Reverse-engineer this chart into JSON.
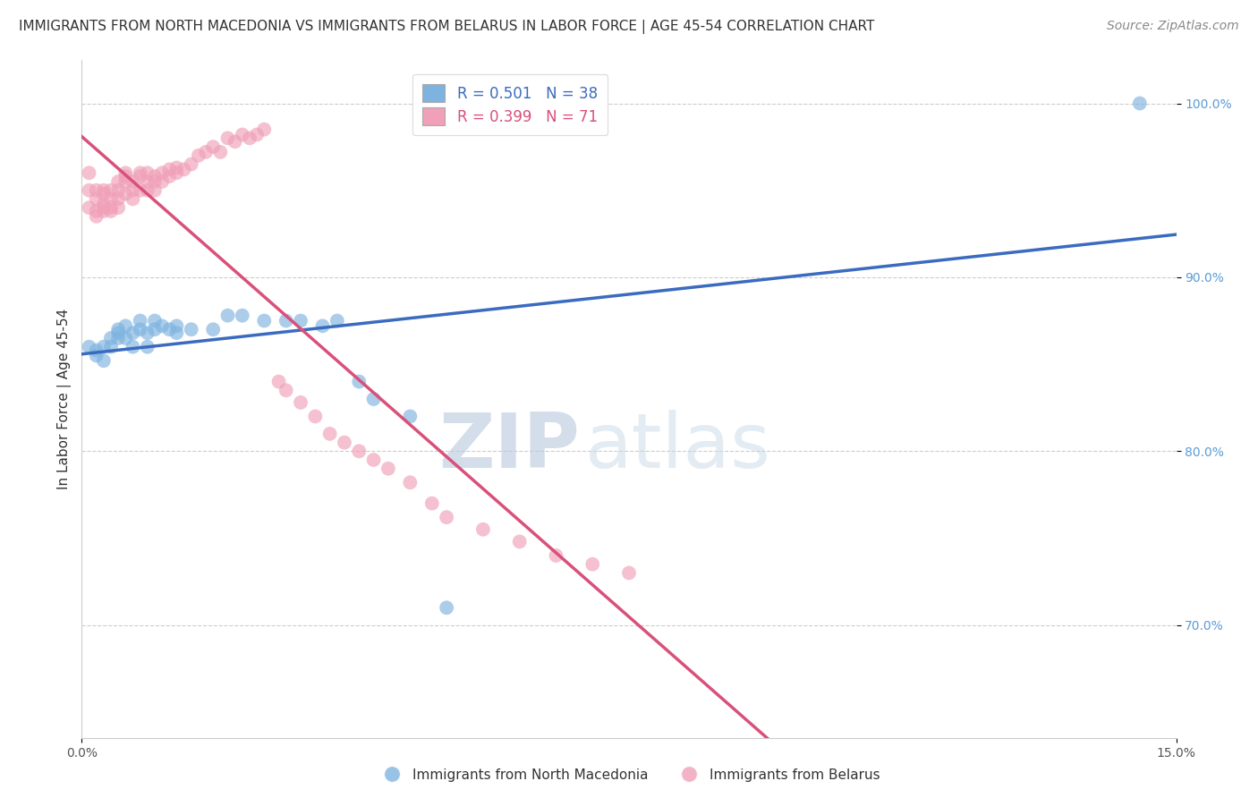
{
  "title": "IMMIGRANTS FROM NORTH MACEDONIA VS IMMIGRANTS FROM BELARUS IN LABOR FORCE | AGE 45-54 CORRELATION CHART",
  "source_text": "Source: ZipAtlas.com",
  "ylabel": "In Labor Force | Age 45-54",
  "xlim": [
    0.0,
    0.15
  ],
  "ylim": [
    0.635,
    1.025
  ],
  "yticks": [
    0.7,
    0.8,
    0.9,
    1.0
  ],
  "ytick_labels": [
    "70.0%",
    "80.0%",
    "90.0%",
    "100.0%"
  ],
  "xticks": [
    0.0,
    0.15
  ],
  "xtick_labels": [
    "0.0%",
    "15.0%"
  ],
  "blue_color": "#7eb3e0",
  "pink_color": "#f0a0b8",
  "blue_line_color": "#3a6bbf",
  "pink_line_color": "#d9507a",
  "blue_legend_label": "Immigrants from North Macedonia",
  "pink_legend_label": "Immigrants from Belarus",
  "watermark_zip": "ZIP",
  "watermark_atlas": "atlas",
  "background_color": "#ffffff",
  "grid_color": "#cccccc",
  "title_fontsize": 11,
  "axis_label_fontsize": 11,
  "tick_fontsize": 10,
  "legend_fontsize": 11,
  "source_fontsize": 10,
  "blue_x": [
    0.001,
    0.002,
    0.002,
    0.003,
    0.003,
    0.004,
    0.004,
    0.005,
    0.005,
    0.005,
    0.006,
    0.006,
    0.007,
    0.007,
    0.008,
    0.008,
    0.009,
    0.009,
    0.01,
    0.01,
    0.011,
    0.012,
    0.013,
    0.013,
    0.015,
    0.018,
    0.02,
    0.022,
    0.025,
    0.028,
    0.03,
    0.033,
    0.035,
    0.038,
    0.04,
    0.045,
    0.05,
    0.145
  ],
  "blue_y": [
    0.86,
    0.855,
    0.858,
    0.852,
    0.86,
    0.865,
    0.86,
    0.87,
    0.865,
    0.868,
    0.872,
    0.865,
    0.868,
    0.86,
    0.875,
    0.87,
    0.868,
    0.86,
    0.875,
    0.87,
    0.872,
    0.87,
    0.872,
    0.868,
    0.87,
    0.87,
    0.878,
    0.878,
    0.875,
    0.875,
    0.875,
    0.872,
    0.875,
    0.84,
    0.83,
    0.82,
    0.71,
    1.0
  ],
  "pink_x": [
    0.001,
    0.001,
    0.001,
    0.002,
    0.002,
    0.002,
    0.002,
    0.003,
    0.003,
    0.003,
    0.003,
    0.003,
    0.004,
    0.004,
    0.004,
    0.004,
    0.005,
    0.005,
    0.005,
    0.005,
    0.006,
    0.006,
    0.006,
    0.006,
    0.007,
    0.007,
    0.007,
    0.008,
    0.008,
    0.008,
    0.009,
    0.009,
    0.009,
    0.01,
    0.01,
    0.01,
    0.011,
    0.011,
    0.012,
    0.012,
    0.013,
    0.013,
    0.014,
    0.015,
    0.016,
    0.017,
    0.018,
    0.019,
    0.02,
    0.021,
    0.022,
    0.023,
    0.024,
    0.025,
    0.027,
    0.028,
    0.03,
    0.032,
    0.034,
    0.036,
    0.038,
    0.04,
    0.042,
    0.045,
    0.048,
    0.05,
    0.055,
    0.06,
    0.065,
    0.07,
    0.075
  ],
  "pink_y": [
    0.94,
    0.95,
    0.96,
    0.935,
    0.945,
    0.95,
    0.938,
    0.94,
    0.948,
    0.95,
    0.938,
    0.942,
    0.945,
    0.95,
    0.94,
    0.938,
    0.955,
    0.95,
    0.945,
    0.94,
    0.958,
    0.96,
    0.955,
    0.948,
    0.955,
    0.95,
    0.945,
    0.96,
    0.958,
    0.95,
    0.96,
    0.955,
    0.95,
    0.958,
    0.955,
    0.95,
    0.96,
    0.955,
    0.962,
    0.958,
    0.963,
    0.96,
    0.962,
    0.965,
    0.97,
    0.972,
    0.975,
    0.972,
    0.98,
    0.978,
    0.982,
    0.98,
    0.982,
    0.985,
    0.84,
    0.835,
    0.828,
    0.82,
    0.81,
    0.805,
    0.8,
    0.795,
    0.79,
    0.782,
    0.77,
    0.762,
    0.755,
    0.748,
    0.74,
    0.735,
    0.73
  ]
}
